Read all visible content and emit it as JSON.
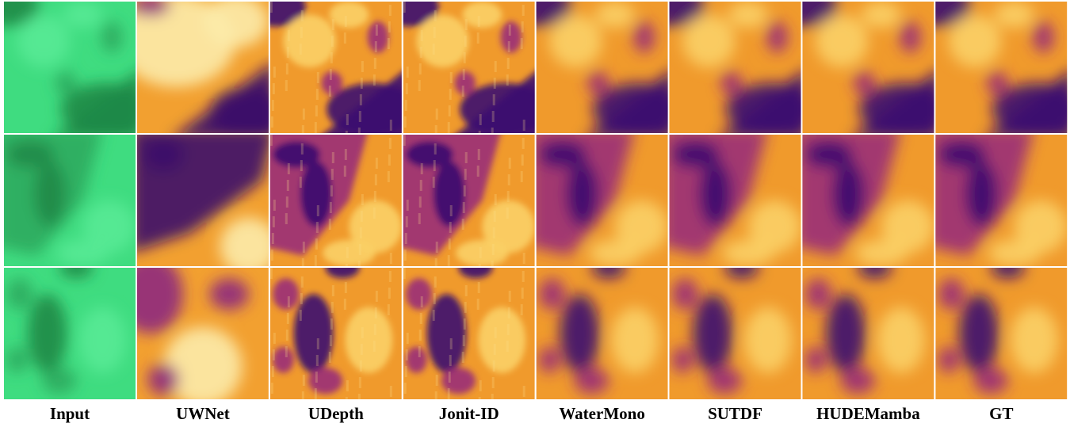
{
  "columns": [
    "Input",
    "UWNet",
    "UDepth",
    "Jonit-ID",
    "WaterMono",
    "SUTDF",
    "HUDEMamba",
    "GT"
  ]
}
